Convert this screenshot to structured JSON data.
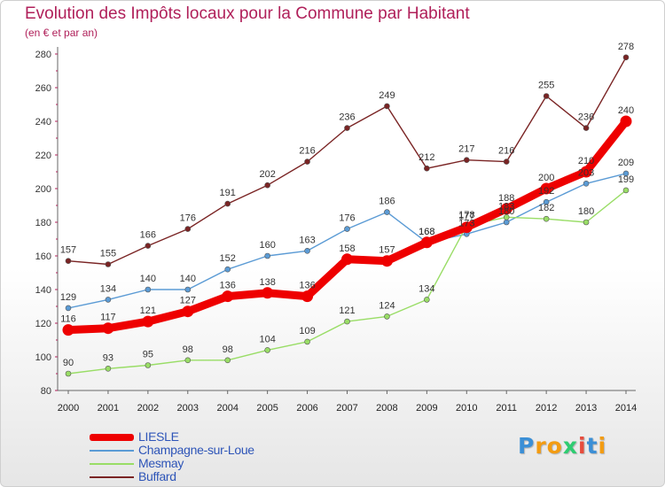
{
  "chart_data": {
    "type": "line",
    "title": "Evolution des Impôts locaux pour la Commune par Habitant",
    "subtitle": "(en € et par an)",
    "xlabel": "",
    "ylabel": "",
    "categories": [
      "2000",
      "2001",
      "2002",
      "2003",
      "2004",
      "2005",
      "2006",
      "2007",
      "2008",
      "2009",
      "2010",
      "2011",
      "2012",
      "2013",
      "2014"
    ],
    "ylim": [
      80,
      280
    ],
    "yticks": [
      80,
      100,
      120,
      140,
      160,
      180,
      200,
      220,
      240,
      260,
      280
    ],
    "grid": false,
    "legend_position": "bottom-left",
    "series": [
      {
        "name": "Buffard",
        "color": "#7a2424",
        "values": [
          157,
          155,
          166,
          176,
          191,
          202,
          216,
          236,
          249,
          212,
          217,
          216,
          255,
          236,
          278
        ]
      },
      {
        "name": "Champagne-sur-Loue",
        "color": "#5b9bd5",
        "values": [
          129,
          134,
          140,
          140,
          152,
          160,
          163,
          176,
          186,
          168,
          173,
          180,
          192,
          203,
          209
        ]
      },
      {
        "name": "Mesmay",
        "color": "#99dd66",
        "values": [
          90,
          93,
          95,
          98,
          98,
          104,
          109,
          121,
          124,
          134,
          178,
          183,
          182,
          180,
          199
        ]
      },
      {
        "name": "LIESLE",
        "color": "#ee0000",
        "values": [
          116,
          117,
          121,
          127,
          136,
          138,
          136,
          158,
          157,
          168,
          177,
          188,
          200,
          210,
          240
        ],
        "highlight": true
      }
    ],
    "labels": {
      "Buffard": [
        "157",
        "155",
        "166",
        "176",
        "191",
        "202",
        "216",
        "236",
        "249",
        "212",
        "217",
        "216",
        "255",
        "236",
        "278"
      ],
      "Champagne-sur-Loue": [
        "129",
        "134",
        "140",
        "140",
        "152",
        "160",
        "163",
        "176",
        "186",
        "168",
        "173",
        "180",
        "192",
        "203",
        "209"
      ],
      "Mesmay": [
        "90",
        "93",
        "95",
        "98",
        "98",
        "104",
        "109",
        "121",
        "124",
        "134",
        "178",
        "183",
        "182",
        "180",
        "199"
      ],
      "LIESLE": [
        "116",
        "117",
        "121",
        "127",
        "136",
        "138",
        "136",
        "158",
        "157",
        "168",
        "177",
        "188",
        "200",
        "210",
        "240"
      ]
    }
  },
  "legend": {
    "items": [
      {
        "name": "LIESLE",
        "color": "#ee0000"
      },
      {
        "name": "Champagne-sur-Loue",
        "color": "#5b9bd5"
      },
      {
        "name": "Mesmay",
        "color": "#99dd66"
      },
      {
        "name": "Buffard",
        "color": "#7a2424"
      }
    ]
  },
  "brand": {
    "letters": [
      "P",
      "r",
      "o",
      "x",
      "i",
      "t",
      "i"
    ],
    "colors": [
      "#3b8fd6",
      "#f39c12",
      "#f39c12",
      "#2ecc71",
      "#e74c3c",
      "#3b8fd6",
      "#f39c12"
    ]
  }
}
